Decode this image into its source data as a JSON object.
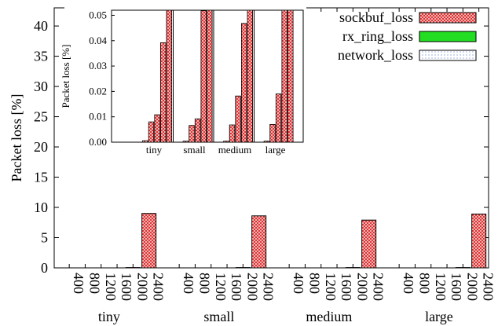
{
  "chart_data": [
    {
      "type": "bar",
      "ylabel": "Packet loss [%]",
      "ylim": [
        0,
        43
      ],
      "yticks": [
        0,
        5,
        10,
        15,
        20,
        25,
        30,
        35,
        40
      ],
      "groups": [
        "tiny",
        "small",
        "medium",
        "large"
      ],
      "sub_categories": [
        "400",
        "800",
        "1200",
        "1600",
        "2000",
        "2400"
      ],
      "series": [
        {
          "name": "sockbuf_loss",
          "values": [
            [
              0,
              0,
              0,
              0,
              0.05,
              9.0
            ],
            [
              0,
              0,
              0,
              0,
              0.05,
              8.6
            ],
            [
              0,
              0,
              0,
              0,
              0.05,
              7.9
            ],
            [
              0,
              0,
              0,
              0,
              0.05,
              8.9
            ]
          ]
        },
        {
          "name": "rx_ring_loss",
          "values": [
            [
              0,
              0,
              0,
              0,
              0,
              0
            ],
            [
              0,
              0,
              0,
              0,
              0,
              0
            ],
            [
              0,
              0,
              0,
              0,
              0,
              0
            ],
            [
              0,
              0,
              0,
              0,
              0,
              0
            ]
          ]
        },
        {
          "name": "network_loss",
          "values": [
            [
              0,
              0,
              0,
              0,
              0,
              0
            ],
            [
              0,
              0,
              0,
              0,
              0,
              0
            ],
            [
              0,
              0,
              0,
              0,
              0,
              0
            ],
            [
              0,
              0,
              0,
              0,
              0,
              0
            ]
          ]
        }
      ],
      "legend_position": "top-right",
      "grid": false,
      "colors": {
        "sockbuf_loss": "#e03030",
        "rx_ring_loss": "#22dd22",
        "network_loss": "#5577cc"
      }
    },
    {
      "type": "bar",
      "inset": true,
      "ylabel": "Packet loss [%]",
      "ylim": [
        0,
        0.052
      ],
      "yticks": [
        "0.00",
        "0.01",
        "0.02",
        "0.03",
        "0.04",
        "0.05"
      ],
      "groups": [
        "tiny",
        "small",
        "medium",
        "large"
      ],
      "series": [
        {
          "name": "sockbuf_loss",
          "values": [
            [
              0,
              0.0006,
              0.008,
              0.0108,
              0.0392,
              0.052
            ],
            [
              0,
              0.0004,
              0.0066,
              0.0092,
              0.0518,
              0.052
            ],
            [
              0,
              0.0004,
              0.0068,
              0.0182,
              0.0468,
              0.052
            ],
            [
              0,
              0.0004,
              0.007,
              0.019,
              0.052,
              0.052
            ]
          ]
        }
      ],
      "grid": false
    }
  ]
}
